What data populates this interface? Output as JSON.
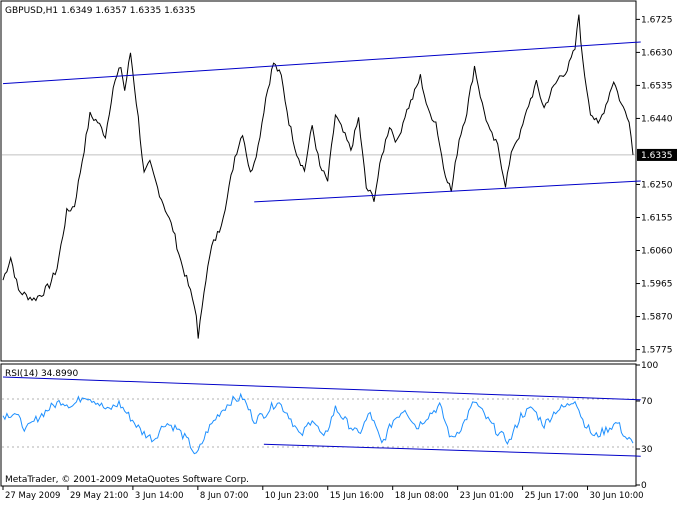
{
  "header": {
    "symbol_text": "GBPUSD,H1  1.6349 1.6357 1.6335 1.6335"
  },
  "footer": {
    "copyright": "MetaTrader, © 2001-2009 MetaQuotes Software Corp."
  },
  "colors": {
    "background": "#ffffff",
    "price_line": "#000000",
    "trend_line": "#0000c8",
    "rsi_line": "#1e90ff",
    "grid_dash": "#b0b0b0",
    "current_price_bg": "#000000",
    "current_price_text": "#ffffff"
  },
  "chart_data": [
    {
      "type": "line",
      "title": "GBPUSD,H1",
      "ohlc": {
        "open": 1.6349,
        "high": 1.6357,
        "low": 1.6335,
        "close": 1.6335
      },
      "current_price_label": "1.6335",
      "current_price": 1.6335,
      "ylim": [
        1.5745,
        1.6775
      ],
      "y_ticks": [
        "1.6725",
        "1.6630",
        "1.6535",
        "1.6440",
        "1.6250",
        "1.6155",
        "1.6060",
        "1.5965",
        "1.5870",
        "1.5775"
      ],
      "y_tick_values": [
        1.6725,
        1.663,
        1.6535,
        1.644,
        1.625,
        1.6155,
        1.606,
        1.5965,
        1.587,
        1.5775
      ],
      "x_ticks": [
        "27 May 2009",
        "29 May 21:00",
        "3 Jun 14:00",
        "8 Jun 07:00",
        "10 Jun 23:00",
        "15 Jun 16:00",
        "18 Jun 08:00",
        "23 Jun 01:00",
        "25 Jun 17:00",
        "30 Jun 10:00"
      ],
      "key_points": [
        {
          "i": 0,
          "price": 1.5975
        },
        {
          "i": 4,
          "price": 1.604
        },
        {
          "i": 8,
          "price": 1.5945
        },
        {
          "i": 12,
          "price": 1.593
        },
        {
          "i": 16,
          "price": 1.592
        },
        {
          "i": 20,
          "price": 1.5935
        },
        {
          "i": 24,
          "price": 1.596
        },
        {
          "i": 28,
          "price": 1.601
        },
        {
          "i": 33,
          "price": 1.617
        },
        {
          "i": 37,
          "price": 1.619
        },
        {
          "i": 41,
          "price": 1.632
        },
        {
          "i": 45,
          "price": 1.645
        },
        {
          "i": 49,
          "price": 1.643
        },
        {
          "i": 53,
          "price": 1.639
        },
        {
          "i": 57,
          "price": 1.653
        },
        {
          "i": 61,
          "price": 1.659
        },
        {
          "i": 63,
          "price": 1.652
        },
        {
          "i": 66,
          "price": 1.663
        },
        {
          "i": 70,
          "price": 1.644
        },
        {
          "i": 73,
          "price": 1.628
        },
        {
          "i": 76,
          "price": 1.631
        },
        {
          "i": 80,
          "price": 1.624
        },
        {
          "i": 84,
          "price": 1.618
        },
        {
          "i": 88,
          "price": 1.612
        },
        {
          "i": 92,
          "price": 1.603
        },
        {
          "i": 96,
          "price": 1.596
        },
        {
          "i": 100,
          "price": 1.588
        },
        {
          "i": 101,
          "price": 1.58
        },
        {
          "i": 104,
          "price": 1.595
        },
        {
          "i": 108,
          "price": 1.607
        },
        {
          "i": 112,
          "price": 1.612
        },
        {
          "i": 116,
          "price": 1.621
        },
        {
          "i": 120,
          "price": 1.633
        },
        {
          "i": 124,
          "price": 1.64
        },
        {
          "i": 128,
          "price": 1.628
        },
        {
          "i": 132,
          "price": 1.636
        },
        {
          "i": 136,
          "price": 1.65
        },
        {
          "i": 140,
          "price": 1.66
        },
        {
          "i": 144,
          "price": 1.656
        },
        {
          "i": 148,
          "price": 1.643
        },
        {
          "i": 152,
          "price": 1.634
        },
        {
          "i": 156,
          "price": 1.629
        },
        {
          "i": 160,
          "price": 1.642
        },
        {
          "i": 164,
          "price": 1.63
        },
        {
          "i": 168,
          "price": 1.626
        },
        {
          "i": 172,
          "price": 1.645
        },
        {
          "i": 176,
          "price": 1.64
        },
        {
          "i": 180,
          "price": 1.635
        },
        {
          "i": 184,
          "price": 1.644
        },
        {
          "i": 188,
          "price": 1.624
        },
        {
          "i": 192,
          "price": 1.621
        },
        {
          "i": 196,
          "price": 1.633
        },
        {
          "i": 200,
          "price": 1.642
        },
        {
          "i": 204,
          "price": 1.637
        },
        {
          "i": 208,
          "price": 1.645
        },
        {
          "i": 212,
          "price": 1.65
        },
        {
          "i": 216,
          "price": 1.656
        },
        {
          "i": 220,
          "price": 1.646
        },
        {
          "i": 224,
          "price": 1.643
        },
        {
          "i": 228,
          "price": 1.63
        },
        {
          "i": 232,
          "price": 1.623
        },
        {
          "i": 236,
          "price": 1.638
        },
        {
          "i": 240,
          "price": 1.646
        },
        {
          "i": 244,
          "price": 1.659
        },
        {
          "i": 248,
          "price": 1.648
        },
        {
          "i": 252,
          "price": 1.64
        },
        {
          "i": 256,
          "price": 1.636
        },
        {
          "i": 260,
          "price": 1.625
        },
        {
          "i": 264,
          "price": 1.636
        },
        {
          "i": 268,
          "price": 1.64
        },
        {
          "i": 272,
          "price": 1.648
        },
        {
          "i": 276,
          "price": 1.654
        },
        {
          "i": 280,
          "price": 1.647
        },
        {
          "i": 284,
          "price": 1.652
        },
        {
          "i": 288,
          "price": 1.656
        },
        {
          "i": 292,
          "price": 1.658
        },
        {
          "i": 296,
          "price": 1.664
        },
        {
          "i": 298,
          "price": 1.674
        },
        {
          "i": 300,
          "price": 1.66
        },
        {
          "i": 304,
          "price": 1.646
        },
        {
          "i": 308,
          "price": 1.642
        },
        {
          "i": 312,
          "price": 1.648
        },
        {
          "i": 316,
          "price": 1.655
        },
        {
          "i": 320,
          "price": 1.648
        },
        {
          "i": 324,
          "price": 1.644
        },
        {
          "i": 326,
          "price": 1.6335
        }
      ],
      "n_bars": 327,
      "trend_lines": [
        {
          "from": {
            "i": 0,
            "price": 1.654
          },
          "to": {
            "i": 330,
            "price": 1.666
          }
        },
        {
          "from": {
            "i": 130,
            "price": 1.62
          },
          "to": {
            "i": 330,
            "price": 1.626
          }
        }
      ]
    },
    {
      "type": "line",
      "title": "RSI(14) 34.8990",
      "label": "RSI(14) 34.8990",
      "ylim": [
        0,
        100
      ],
      "y_ticks": [
        "100",
        "70",
        "30",
        "0"
      ],
      "y_tick_values": [
        100,
        70,
        30,
        0
      ],
      "levels": [
        70,
        30
      ],
      "key_points": [
        {
          "i": 0,
          "v": 58
        },
        {
          "i": 6,
          "v": 60
        },
        {
          "i": 12,
          "v": 46
        },
        {
          "i": 18,
          "v": 56
        },
        {
          "i": 24,
          "v": 64
        },
        {
          "i": 30,
          "v": 70
        },
        {
          "i": 36,
          "v": 66
        },
        {
          "i": 42,
          "v": 75
        },
        {
          "i": 48,
          "v": 70
        },
        {
          "i": 54,
          "v": 62
        },
        {
          "i": 60,
          "v": 68
        },
        {
          "i": 66,
          "v": 56
        },
        {
          "i": 72,
          "v": 44
        },
        {
          "i": 78,
          "v": 38
        },
        {
          "i": 84,
          "v": 52
        },
        {
          "i": 90,
          "v": 47
        },
        {
          "i": 96,
          "v": 36
        },
        {
          "i": 100,
          "v": 24
        },
        {
          "i": 106,
          "v": 46
        },
        {
          "i": 112,
          "v": 60
        },
        {
          "i": 118,
          "v": 70
        },
        {
          "i": 124,
          "v": 73
        },
        {
          "i": 130,
          "v": 54
        },
        {
          "i": 136,
          "v": 60
        },
        {
          "i": 142,
          "v": 70
        },
        {
          "i": 148,
          "v": 58
        },
        {
          "i": 154,
          "v": 40
        },
        {
          "i": 160,
          "v": 56
        },
        {
          "i": 166,
          "v": 38
        },
        {
          "i": 172,
          "v": 64
        },
        {
          "i": 178,
          "v": 52
        },
        {
          "i": 184,
          "v": 42
        },
        {
          "i": 190,
          "v": 60
        },
        {
          "i": 196,
          "v": 34
        },
        {
          "i": 202,
          "v": 54
        },
        {
          "i": 208,
          "v": 64
        },
        {
          "i": 214,
          "v": 48
        },
        {
          "i": 220,
          "v": 58
        },
        {
          "i": 226,
          "v": 66
        },
        {
          "i": 232,
          "v": 38
        },
        {
          "i": 238,
          "v": 50
        },
        {
          "i": 244,
          "v": 70
        },
        {
          "i": 250,
          "v": 56
        },
        {
          "i": 256,
          "v": 44
        },
        {
          "i": 262,
          "v": 36
        },
        {
          "i": 268,
          "v": 58
        },
        {
          "i": 274,
          "v": 64
        },
        {
          "i": 280,
          "v": 50
        },
        {
          "i": 286,
          "v": 62
        },
        {
          "i": 292,
          "v": 66
        },
        {
          "i": 296,
          "v": 72
        },
        {
          "i": 300,
          "v": 54
        },
        {
          "i": 306,
          "v": 40
        },
        {
          "i": 312,
          "v": 46
        },
        {
          "i": 318,
          "v": 52
        },
        {
          "i": 322,
          "v": 40
        },
        {
          "i": 326,
          "v": 34.9
        }
      ],
      "trend_lines": [
        {
          "from": {
            "i": 0,
            "v": 90
          },
          "to": {
            "i": 330,
            "v": 71
          }
        },
        {
          "from": {
            "i": 135,
            "v": 34
          },
          "to": {
            "i": 330,
            "v": 24
          }
        }
      ]
    }
  ]
}
